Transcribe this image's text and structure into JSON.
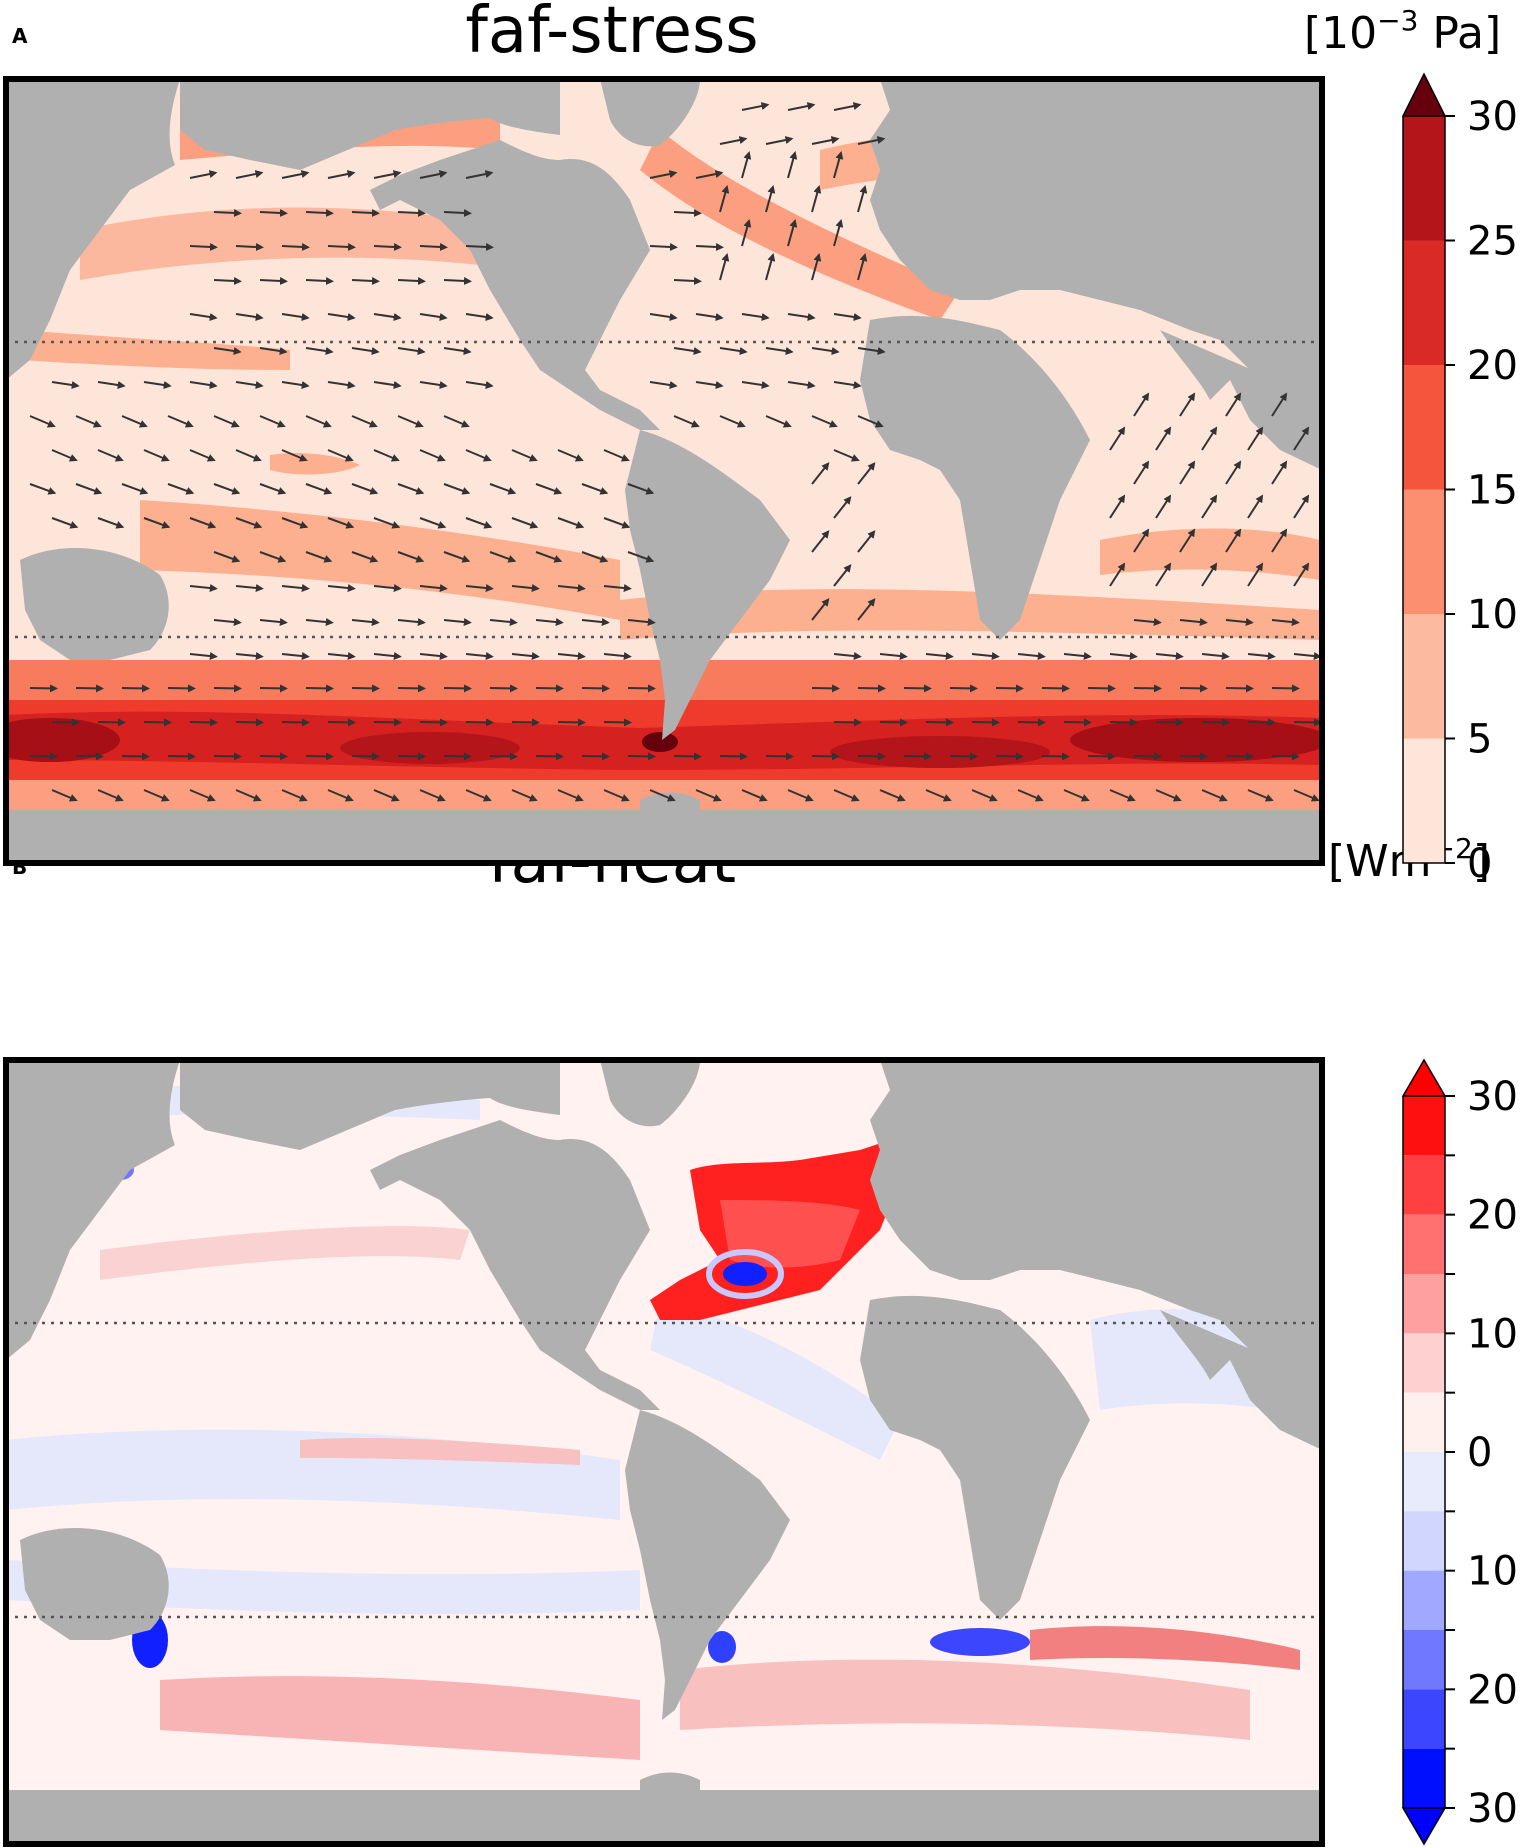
{
  "panels": [
    {
      "letter": "A",
      "title": "faf-stress",
      "unit": {
        "base": "[10",
        "exponent": "−3",
        "rest": " Pa]"
      },
      "colorbar": {
        "ticks": [
          "0",
          "5",
          "10",
          "15",
          "20",
          "25",
          "30"
        ],
        "colors": [
          "#fee5d9",
          "#fcbba1",
          "#fc8f6f",
          "#f5553c",
          "#d92a25",
          "#b3151b"
        ],
        "extend_color": "#67000d"
      }
    },
    {
      "letter": "B",
      "title": "faf-heat",
      "unit": {
        "base": "[Wm",
        "exponent": "−2",
        "rest": "]"
      },
      "colorbar": {
        "ticks": [
          "30",
          "20",
          "10",
          "0",
          "10",
          "20",
          "30"
        ],
        "colors": [
          "#ff1010",
          "#ff4040",
          "#ff7070",
          "#ffa0a0",
          "#ffd0d0",
          "#fff0ee",
          "#e8ebfb",
          "#d0d6ff",
          "#a0a8ff",
          "#7078ff",
          "#3c46ff",
          "#0010ff"
        ],
        "top_extend_color": "#ff0000",
        "bottom_extend_color": "#0000ff"
      }
    }
  ],
  "colors": {
    "land": "#b0b0b0",
    "frame": "#000000",
    "arrow": "#333333",
    "dotted_line": "#555555"
  }
}
